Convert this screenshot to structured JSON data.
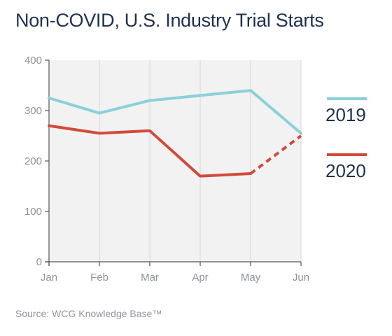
{
  "title": "Non-COVID, U.S. Industry Trial Starts",
  "source": "Source: WCG Knowledge Base™",
  "chart_data": {
    "type": "line",
    "categories": [
      "Jan",
      "Feb",
      "Mar",
      "Apr",
      "May",
      "Jun"
    ],
    "ylim": [
      0,
      400
    ],
    "yticks": [
      0,
      100,
      200,
      300,
      400
    ],
    "grid": "vertical",
    "legend": "right",
    "series": [
      {
        "name": "2019",
        "color": "#8bd0da",
        "values": [
          325,
          295,
          320,
          330,
          340,
          255
        ]
      },
      {
        "name": "2020",
        "color": "#d24a3a",
        "values": [
          270,
          255,
          260,
          170,
          175,
          250
        ],
        "dashed_last_segment": true
      }
    ]
  }
}
